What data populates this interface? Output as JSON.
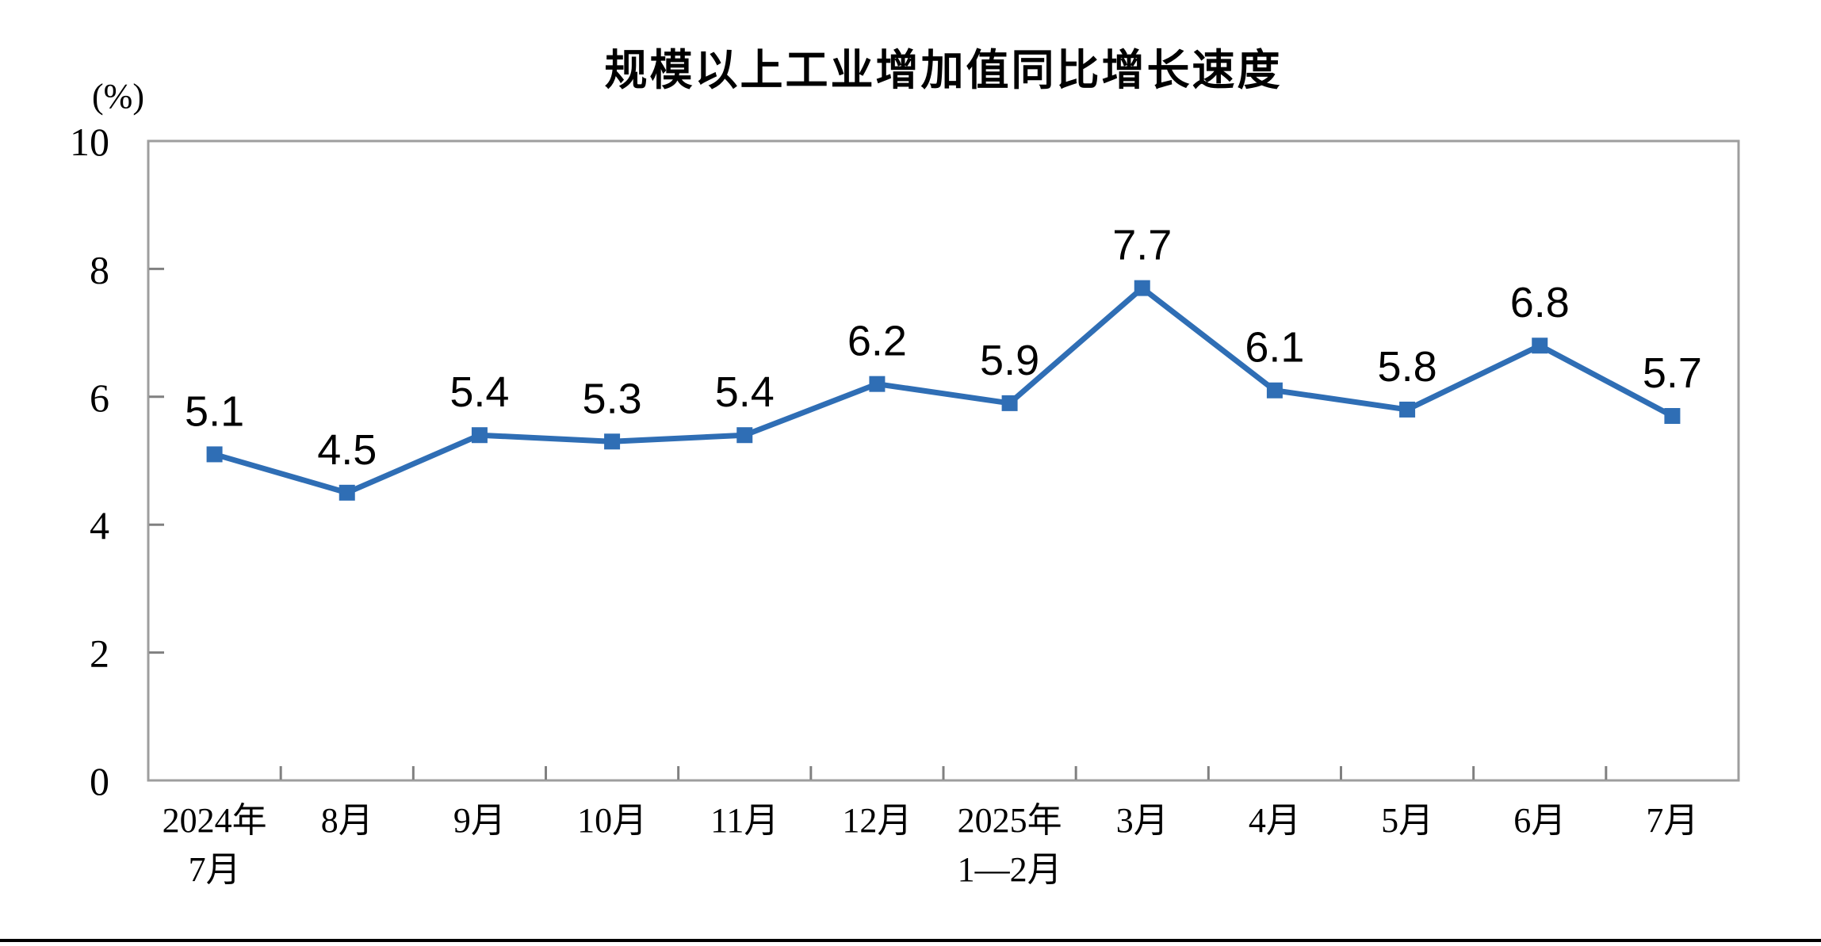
{
  "chart_data": {
    "type": "line",
    "title": "规模以上工业增加值同比增长速度",
    "unit_label": "(%)",
    "categories": [
      "2024年\n7月",
      "8月",
      "9月",
      "10月",
      "11月",
      "12月",
      "2025年\n1—2月",
      "3月",
      "4月",
      "5月",
      "6月",
      "7月"
    ],
    "values": [
      5.1,
      4.5,
      5.4,
      5.3,
      5.4,
      6.2,
      5.9,
      7.7,
      6.1,
      5.8,
      6.8,
      5.7
    ],
    "ylim": [
      0,
      10
    ],
    "y_ticks": [
      0,
      2,
      4,
      6,
      8,
      10
    ],
    "grid": false,
    "legend": "none",
    "marker": "square",
    "line_color": "#2F6EB5",
    "axis_color": "#9E9E9E",
    "tick_color": "#808080",
    "label_color": "#000000"
  },
  "footer": {
    "divider_color": "#000000"
  }
}
